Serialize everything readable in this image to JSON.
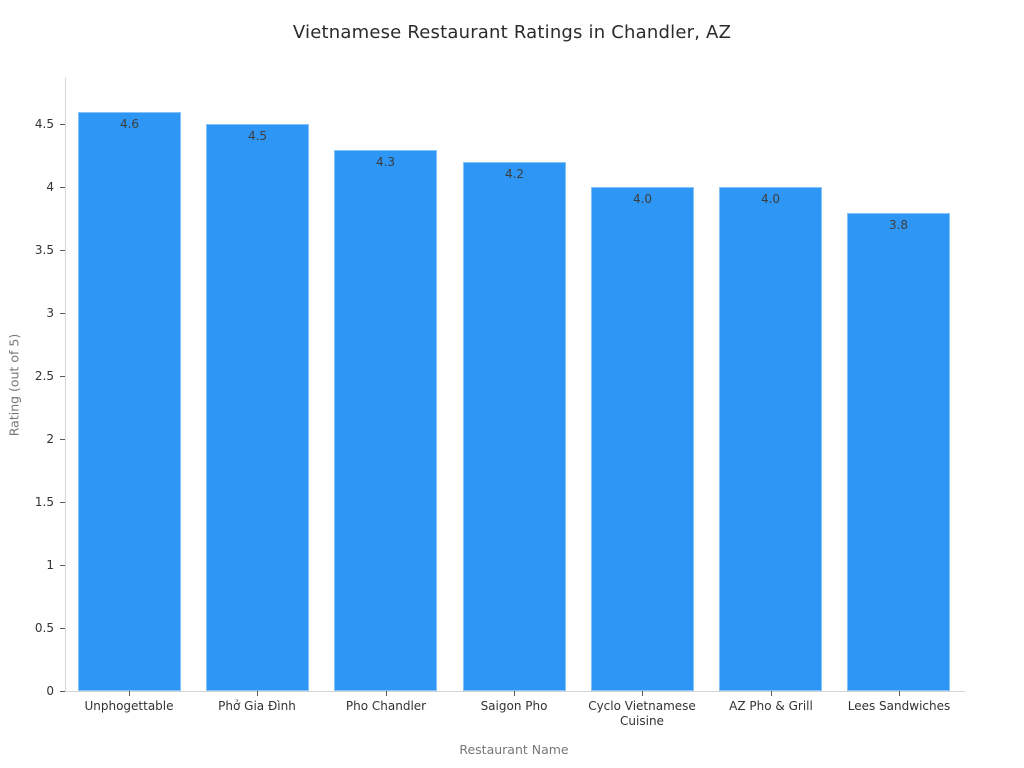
{
  "chart_data": {
    "type": "bar",
    "title": "Vietnamese Restaurant Ratings in Chandler, AZ",
    "xlabel": "Restaurant Name",
    "ylabel": "Rating (out of 5)",
    "categories": [
      "Unphogettable",
      "Phở Gia Đình",
      "Pho Chandler",
      "Saigon Pho",
      "Cyclo Vietnamese Cuisine",
      "AZ Pho & Grill",
      "Lees Sandwiches"
    ],
    "values": [
      4.6,
      4.5,
      4.3,
      4.2,
      4.0,
      4.0,
      3.8
    ],
    "bar_labels": [
      "4.6",
      "4.5",
      "4.3",
      "4.2",
      "4.0",
      "4.0",
      "3.8"
    ],
    "yticks": [
      {
        "value": 0,
        "label": "0"
      },
      {
        "value": 0.5,
        "label": "0.5"
      },
      {
        "value": 1,
        "label": "1"
      },
      {
        "value": 1.5,
        "label": "1.5"
      },
      {
        "value": 2,
        "label": "2"
      },
      {
        "value": 2.5,
        "label": "2.5"
      },
      {
        "value": 3,
        "label": "3"
      },
      {
        "value": 3.5,
        "label": "3.5"
      },
      {
        "value": 4,
        "label": "4"
      },
      {
        "value": 4.5,
        "label": "4.5"
      }
    ],
    "ylim": [
      0,
      4.88
    ],
    "grid": false,
    "legend": false,
    "value_label_position": "inside-top",
    "colors": {
      "background": "#ffffff",
      "bar_fill": "#2e96f5",
      "bar_edge": "#85c2f7",
      "title_text": "#2b2b2b",
      "tick_text": "#333333",
      "axis_label_text": "#757779",
      "spine": "#d5d5d5",
      "tick_mark": "#5a5a5a",
      "bar_value_text": "#3d3d3d"
    }
  }
}
